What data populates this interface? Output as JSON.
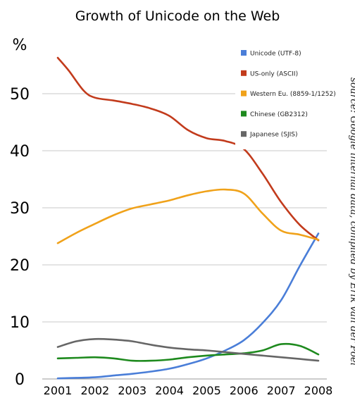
{
  "chart_data": {
    "type": "line",
    "title": "Growth of Unicode on the Web",
    "ylabel": "%",
    "ylim": [
      0,
      60
    ],
    "yticks": [
      "0",
      "10",
      "20",
      "30",
      "40",
      "50"
    ],
    "xlim": [
      2001,
      2008
    ],
    "categories": [
      "2001",
      "2002",
      "2003",
      "2004",
      "2005",
      "2006",
      "2007",
      "2008"
    ],
    "grid": true,
    "legend_position": "top-right",
    "source_note": "source: Google internal data, compiled by Erik van der Poel",
    "series": [
      {
        "name": "Unicode (UTF-8)",
        "color": "#4a7ed8",
        "points": [
          [
            2001,
            0.1
          ],
          [
            2001.5,
            0.2
          ],
          [
            2002,
            0.3
          ],
          [
            2002.5,
            0.6
          ],
          [
            2003,
            0.9
          ],
          [
            2003.5,
            1.3
          ],
          [
            2004,
            1.8
          ],
          [
            2004.5,
            2.6
          ],
          [
            2005,
            3.6
          ],
          [
            2005.5,
            5.0
          ],
          [
            2006,
            6.8
          ],
          [
            2006.5,
            9.8
          ],
          [
            2007,
            13.8
          ],
          [
            2007.5,
            19.8
          ],
          [
            2008,
            25.5
          ]
        ]
      },
      {
        "name": "US-only (ASCII)",
        "color": "#c23b1c",
        "points": [
          [
            2001,
            56.3
          ],
          [
            2001.3,
            54.0
          ],
          [
            2001.7,
            50.5
          ],
          [
            2002,
            49.3
          ],
          [
            2002.5,
            48.8
          ],
          [
            2003,
            48.2
          ],
          [
            2003.5,
            47.4
          ],
          [
            2004,
            46.1
          ],
          [
            2004.5,
            43.6
          ],
          [
            2005,
            42.2
          ],
          [
            2005.5,
            41.7
          ],
          [
            2006,
            40.3
          ],
          [
            2006.5,
            36.0
          ],
          [
            2007,
            31.0
          ],
          [
            2007.5,
            27.0
          ],
          [
            2008,
            24.3
          ]
        ]
      },
      {
        "name": "Western Eu. (8859-1/1252)",
        "color": "#f0a21a",
        "points": [
          [
            2001,
            23.8
          ],
          [
            2001.5,
            25.6
          ],
          [
            2002,
            27.2
          ],
          [
            2002.5,
            28.7
          ],
          [
            2003,
            29.9
          ],
          [
            2003.5,
            30.6
          ],
          [
            2004,
            31.3
          ],
          [
            2004.5,
            32.2
          ],
          [
            2005,
            32.9
          ],
          [
            2005.5,
            33.2
          ],
          [
            2006,
            32.5
          ],
          [
            2006.5,
            29.0
          ],
          [
            2007,
            26.0
          ],
          [
            2007.5,
            25.3
          ],
          [
            2008,
            24.4
          ]
        ]
      },
      {
        "name": "Chinese (GB2312)",
        "color": "#1e8a1e",
        "points": [
          [
            2001,
            3.6
          ],
          [
            2001.5,
            3.7
          ],
          [
            2002,
            3.8
          ],
          [
            2002.5,
            3.6
          ],
          [
            2003,
            3.2
          ],
          [
            2003.5,
            3.2
          ],
          [
            2004,
            3.4
          ],
          [
            2004.5,
            3.8
          ],
          [
            2005,
            4.1
          ],
          [
            2005.5,
            4.3
          ],
          [
            2006,
            4.5
          ],
          [
            2006.5,
            5.0
          ],
          [
            2007,
            6.1
          ],
          [
            2007.5,
            5.8
          ],
          [
            2008,
            4.3
          ]
        ]
      },
      {
        "name": "Japanese (SJIS)",
        "color": "#666666",
        "points": [
          [
            2001,
            5.6
          ],
          [
            2001.5,
            6.6
          ],
          [
            2002,
            7.0
          ],
          [
            2002.5,
            6.9
          ],
          [
            2003,
            6.6
          ],
          [
            2003.5,
            6.0
          ],
          [
            2004,
            5.5
          ],
          [
            2004.5,
            5.2
          ],
          [
            2005,
            5.0
          ],
          [
            2005.5,
            4.7
          ],
          [
            2006,
            4.4
          ],
          [
            2006.5,
            4.1
          ],
          [
            2007,
            3.8
          ],
          [
            2007.5,
            3.5
          ],
          [
            2008,
            3.2
          ]
        ]
      }
    ]
  }
}
